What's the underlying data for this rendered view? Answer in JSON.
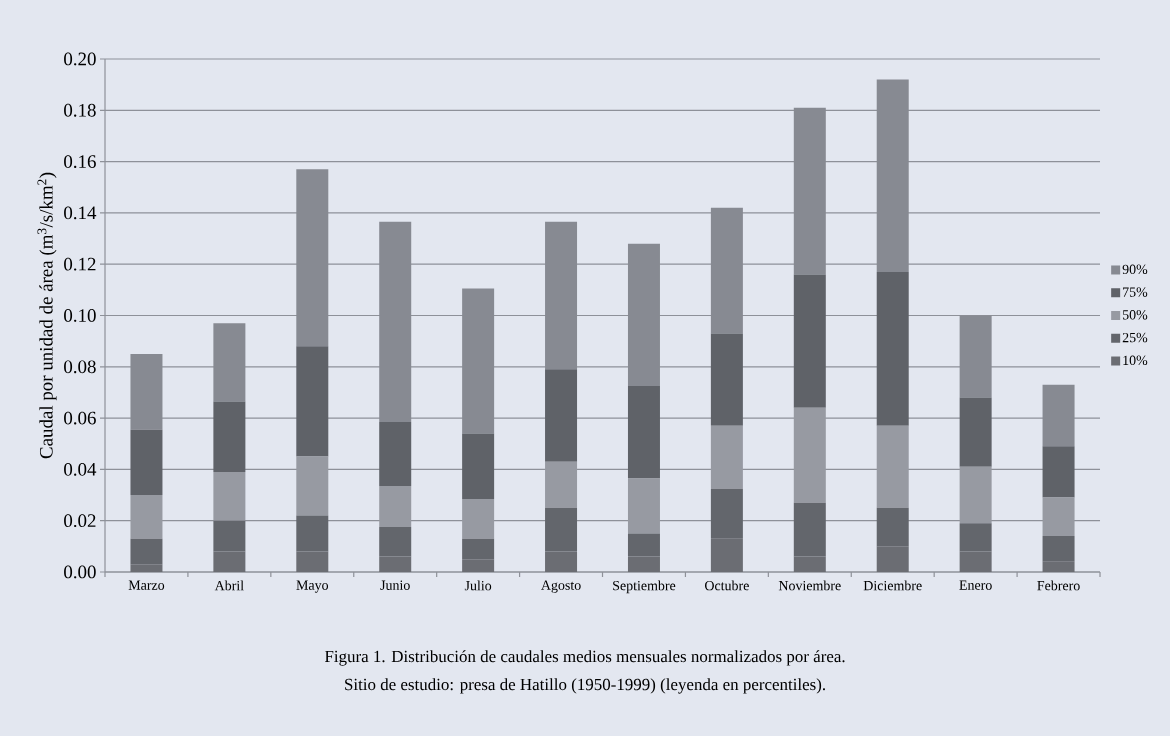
{
  "chart_data": {
    "type": "bar",
    "stacked": true,
    "ylabel": "Caudal por unidad de área (m$^{3}$/s/km$^{2}$)",
    "categories": [
      "Marzo",
      "Abril",
      "Mayo",
      "Junio",
      "Julio",
      "Agosto",
      "Septiembre",
      "Octubre",
      "Noviembre",
      "Diciembre",
      "Enero",
      "Febrero"
    ],
    "series": [
      {
        "name": "10%",
        "color": "#6b6d73",
        "values": [
          0.003,
          0.008,
          0.008,
          0.006,
          0.005,
          0.008,
          0.006,
          0.013,
          0.006,
          0.01,
          0.008,
          0.004
        ]
      },
      {
        "name": "25%",
        "color": "#63666c",
        "values": [
          0.01,
          0.012,
          0.014,
          0.0115,
          0.008,
          0.017,
          0.009,
          0.0195,
          0.021,
          0.015,
          0.011,
          0.01
        ]
      },
      {
        "name": "50%",
        "color": "#979aa2",
        "values": [
          0.017,
          0.019,
          0.023,
          0.016,
          0.0155,
          0.018,
          0.0215,
          0.0245,
          0.037,
          0.032,
          0.022,
          0.015
        ]
      },
      {
        "name": "75%",
        "color": "#5f6268",
        "values": [
          0.0255,
          0.0275,
          0.043,
          0.025,
          0.0255,
          0.036,
          0.036,
          0.036,
          0.052,
          0.06,
          0.027,
          0.02
        ]
      },
      {
        "name": "90%",
        "color": "#878a92",
        "values": [
          0.0295,
          0.0305,
          0.069,
          0.078,
          0.0565,
          0.0575,
          0.0555,
          0.049,
          0.065,
          0.075,
          0.032,
          0.024
        ]
      }
    ],
    "ylim": [
      0,
      0.2
    ],
    "yticks": [
      {
        "value": 0,
        "label": "0.00"
      },
      {
        "value": 0.02,
        "label": "0.02"
      },
      {
        "value": 0.04,
        "label": "0.04"
      },
      {
        "value": 0.06,
        "label": "0.06"
      },
      {
        "value": 0.08,
        "label": "0.08"
      },
      {
        "value": 0.1,
        "label": "0.10"
      },
      {
        "value": 0.12,
        "label": "0.12"
      },
      {
        "value": 0.14,
        "label": "0.14"
      },
      {
        "value": 0.16,
        "label": "0.16"
      },
      {
        "value": 0.18,
        "label": "0.18"
      },
      {
        "value": 0.2,
        "label": "0.20"
      }
    ],
    "grid": "y",
    "legend": "right",
    "annotations": [
      "Figura 1. Distribución de caudales medios mensuales normalizados por área.",
      "Sitio de estudio: presa de Hatillo (1950-1999) (leyenda en percentiles)."
    ]
  }
}
